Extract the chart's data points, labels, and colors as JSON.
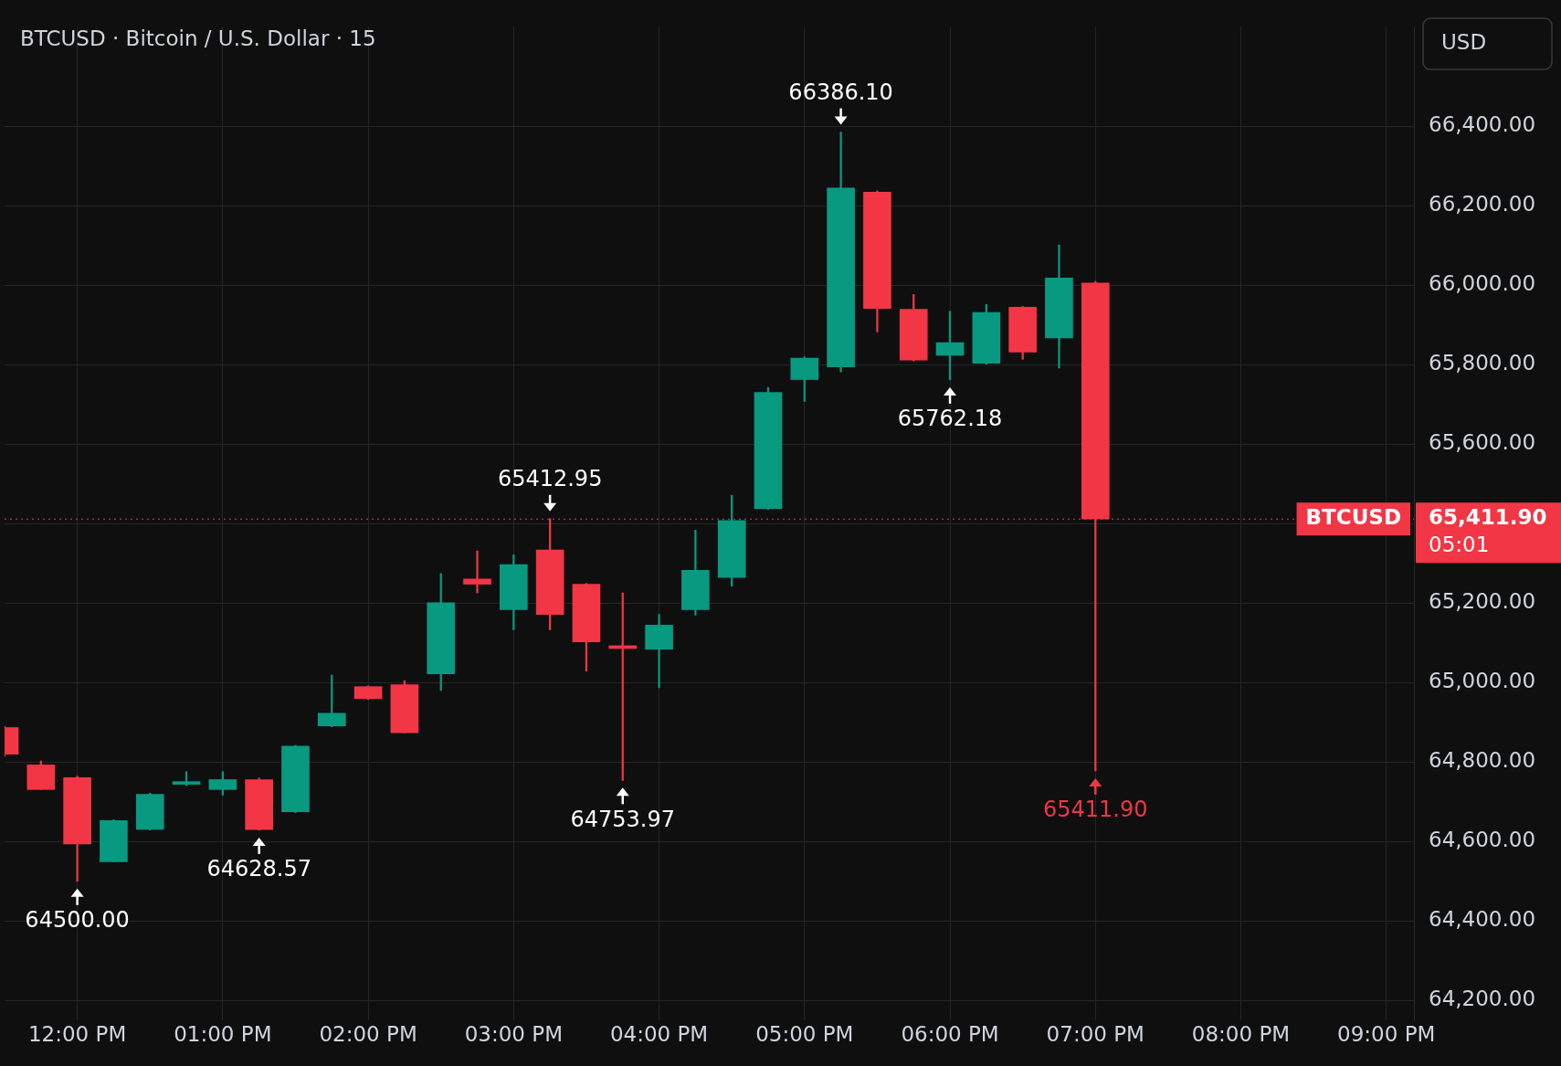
{
  "chart_data": {
    "type": "candlestick",
    "title": "BTCUSD · Bitcoin / U.S. Dollar · 15",
    "ylabel": "USD",
    "x": [
      11.5,
      11.75,
      12,
      12.25,
      12.5,
      12.75,
      13,
      13.25,
      13.5,
      13.75,
      14,
      14.25,
      14.5,
      14.75,
      15,
      15.25,
      15.5,
      15.75,
      16,
      16.25,
      16.5,
      16.75,
      17,
      17.25,
      17.5,
      17.75,
      18,
      18.25,
      18.5,
      18.75,
      19
    ],
    "ohlc": [
      [
        64887,
        64890,
        64815,
        64820
      ],
      [
        64793,
        64803,
        64731,
        64731
      ],
      [
        64761,
        64765,
        64500,
        64594
      ],
      [
        64549,
        64655,
        64549,
        64653
      ],
      [
        64631,
        64722,
        64629,
        64719
      ],
      [
        64744,
        64776,
        64741,
        64749
      ],
      [
        64731,
        64776,
        64717,
        64756
      ],
      [
        64756,
        64760,
        64628.57,
        64630
      ],
      [
        64675,
        64842,
        64673,
        64840
      ],
      [
        64891,
        65019,
        64889,
        64923
      ],
      [
        64990,
        64992,
        64958,
        64960
      ],
      [
        64995,
        65005,
        64874,
        64874
      ],
      [
        65022,
        65275,
        64980,
        65201
      ],
      [
        65261,
        65332,
        65226,
        65248
      ],
      [
        65184,
        65322,
        65133,
        65297
      ],
      [
        65334,
        65412.95,
        65133,
        65172
      ],
      [
        65248,
        65250,
        65029,
        65103
      ],
      [
        65093,
        65226,
        64753.97,
        65086
      ],
      [
        65084,
        65172,
        64987,
        65145
      ],
      [
        65184,
        65384,
        65170,
        65283
      ],
      [
        65265,
        65472,
        65243,
        65408
      ],
      [
        65438,
        65743,
        65436,
        65731
      ],
      [
        65763,
        65820,
        65708,
        65817
      ],
      [
        65795,
        66386.1,
        65782,
        66245
      ],
      [
        66235,
        66238,
        65883,
        65942
      ],
      [
        65940,
        65977,
        65810,
        65812
      ],
      [
        65824,
        65935,
        65762.18,
        65856
      ],
      [
        65804,
        65952,
        65802,
        65932
      ],
      [
        65945,
        65947,
        65814,
        65832
      ],
      [
        65868,
        66102,
        65792,
        66019
      ],
      [
        66006,
        66010,
        64778,
        65411.9
      ]
    ],
    "colors": [
      "#f23645",
      "#f23645",
      "#f23645",
      "#089981",
      "#089981",
      "#089981",
      "#089981",
      "#f23645",
      "#089981",
      "#089981",
      "#f23645",
      "#f23645",
      "#089981",
      "#f23645",
      "#089981",
      "#f23645",
      "#f23645",
      "#f23645",
      "#089981",
      "#089981",
      "#089981",
      "#089981",
      "#089981",
      "#089981",
      "#f23645",
      "#f23645",
      "#089981",
      "#089981",
      "#f23645",
      "#089981",
      "#f23645"
    ],
    "xlim": [
      11.5,
      21.19
    ],
    "xticks": [
      {
        "value": 12,
        "label": "12:00 PM"
      },
      {
        "value": 13,
        "label": "01:00 PM"
      },
      {
        "value": 14,
        "label": "02:00 PM"
      },
      {
        "value": 15,
        "label": "03:00 PM"
      },
      {
        "value": 16,
        "label": "04:00 PM"
      },
      {
        "value": 17,
        "label": "05:00 PM"
      },
      {
        "value": 18,
        "label": "06:00 PM"
      },
      {
        "value": 19,
        "label": "07:00 PM"
      },
      {
        "value": 20,
        "label": "08:00 PM"
      },
      {
        "value": 21,
        "label": "09:00 PM"
      }
    ],
    "ylim": [
      64150,
      66650
    ],
    "yticks": [
      {
        "value": 64200,
        "label": "64,200.00"
      },
      {
        "value": 64400,
        "label": "64,400.00"
      },
      {
        "value": 64600,
        "label": "64,600.00"
      },
      {
        "value": 64800,
        "label": "64,800.00"
      },
      {
        "value": 65000,
        "label": "65,000.00"
      },
      {
        "value": 65200,
        "label": "65,200.00"
      },
      {
        "value": 65400,
        "label": null
      },
      {
        "value": 65600,
        "label": "65,600.00"
      },
      {
        "value": 65800,
        "label": "65,800.00"
      },
      {
        "value": 66000,
        "label": "66,000.00"
      },
      {
        "value": 66200,
        "label": "66,200.00"
      },
      {
        "value": 66400,
        "label": "66,400.00"
      }
    ],
    "grid": true,
    "ref_lines": [
      {
        "axis": "y",
        "value": 65411.9,
        "label": "BTCUSD",
        "color": "#f23645",
        "line_style": "dotted"
      }
    ],
    "annotations": [
      {
        "text": "64500.00",
        "x": 12,
        "y": 64500
      },
      {
        "text": "64628.57",
        "x": 13.25,
        "y": 64628.57
      },
      {
        "text": "65412.95",
        "x": 15.25,
        "y": 65412.95
      },
      {
        "text": "64753.97",
        "x": 15.75,
        "y": 64753.97
      },
      {
        "text": "66386.10",
        "x": 17.25,
        "y": 66386.1
      },
      {
        "text": "65762.18",
        "x": 18,
        "y": 65762.18
      },
      {
        "text": "65411.90",
        "x": 19,
        "y": 64778
      },
      "65,411.90",
      "05:01"
    ]
  }
}
